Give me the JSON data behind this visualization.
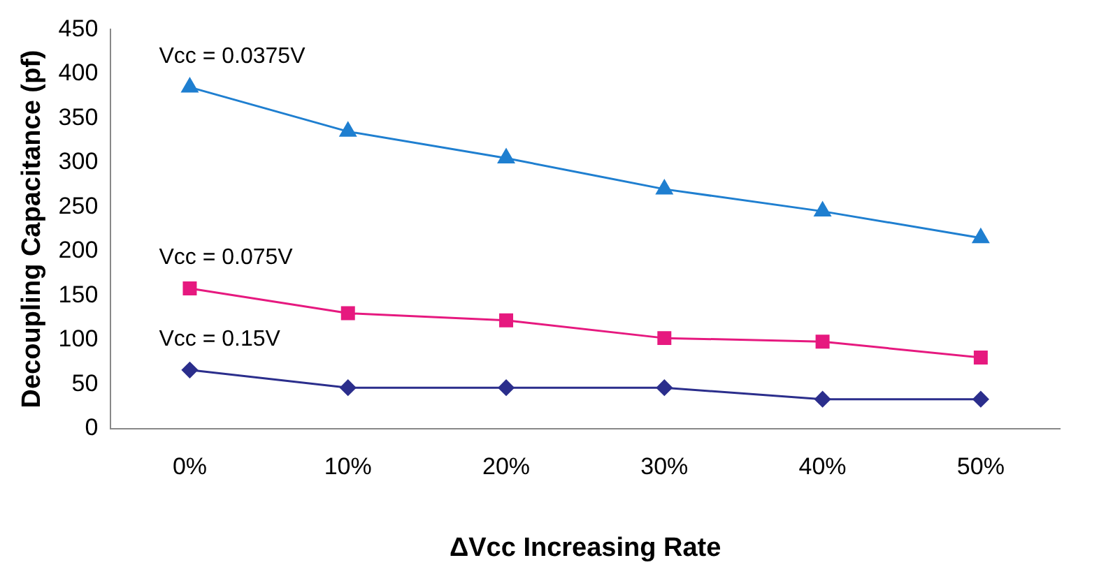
{
  "chart_data": {
    "type": "line",
    "xlabel": "ΔVcc Increasing Rate",
    "ylabel": "Decoupling Capacitance (pf)",
    "categories": [
      "0%",
      "10%",
      "20%",
      "30%",
      "40%",
      "50%"
    ],
    "series": [
      {
        "name": "Vcc = 0.0375V",
        "color": "#1f7fd0",
        "marker": "triangle",
        "values": [
          385,
          335,
          305,
          270,
          245,
          215
        ]
      },
      {
        "name": "Vcc = 0.075V",
        "color": "#e6197f",
        "marker": "square",
        "values": [
          158,
          130,
          122,
          102,
          98,
          80
        ]
      },
      {
        "name": "Vcc = 0.15V",
        "color": "#2b2e8c",
        "marker": "diamond",
        "values": [
          66,
          46,
          46,
          46,
          33,
          33
        ]
      }
    ],
    "ylim": [
      0,
      450
    ],
    "yticks": [
      0,
      50,
      100,
      150,
      200,
      250,
      300,
      350,
      400,
      450
    ],
    "grid": false,
    "legend": false
  }
}
